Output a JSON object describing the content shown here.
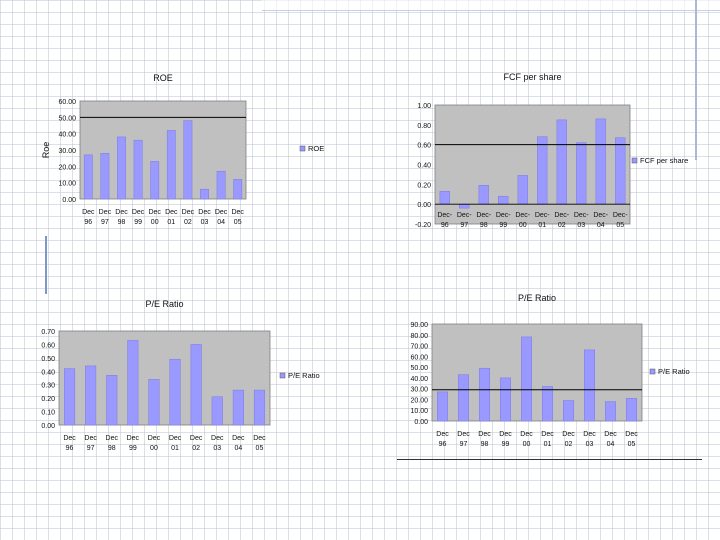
{
  "theme": {
    "plot_bg": "#c0c0c0",
    "bar_fill": "#9999ff",
    "bar_stroke": "#333333",
    "ref_line": "#000000"
  },
  "chart_data": [
    {
      "type": "bar",
      "title": "ROE",
      "ylabel": "Roe",
      "xlabel": "",
      "legend": "ROE",
      "legend_position": "right",
      "grid": false,
      "categories": [
        "Dec 96",
        "Dec 97",
        "Dec 98",
        "Dec 99",
        "Dec 00",
        "Dec 01",
        "Dec 02",
        "Dec 03",
        "Dec 04",
        "Dec 05"
      ],
      "values": [
        27,
        28,
        38,
        36,
        23,
        42,
        48,
        6,
        17,
        12
      ],
      "ylim": [
        0,
        60
      ],
      "yticks": [
        "0.00",
        "10.00",
        "20.00",
        "30.00",
        "40.00",
        "50.00",
        "60.00"
      ],
      "reference_line": 50
    },
    {
      "type": "bar",
      "title": "FCF per share",
      "ylabel": "",
      "xlabel": "",
      "legend": "FCF per share",
      "legend_position": "right",
      "grid": false,
      "categories": [
        "Dec- 96",
        "Dec- 97",
        "Dec- 98",
        "Dec- 99",
        "Dec- 00",
        "Dec- 01",
        "Dec- 02",
        "Dec- 03",
        "Dec- 04",
        "Dec- 05"
      ],
      "values": [
        0.13,
        -0.04,
        0.19,
        0.08,
        0.29,
        0.68,
        0.85,
        0.62,
        0.86,
        0.67
      ],
      "ylim": [
        -0.2,
        1.0
      ],
      "yticks": [
        "-0.20",
        "0.00",
        "0.20",
        "0.40",
        "0.60",
        "0.80",
        "1.00"
      ],
      "reference_line": 0.6
    },
    {
      "type": "bar",
      "title": "P/E Ratio",
      "ylabel": "",
      "xlabel": "",
      "legend": "P/E Ratio",
      "legend_position": "right",
      "grid": false,
      "categories": [
        "Dec 96",
        "Dec 97",
        "Dec 98",
        "Dec 99",
        "Dec 00",
        "Dec 01",
        "Dec 02",
        "Dec 03",
        "Dec 04",
        "Dec 05"
      ],
      "values": [
        0.42,
        0.44,
        0.37,
        0.63,
        0.34,
        0.49,
        0.6,
        0.21,
        0.26,
        0.26
      ],
      "ylim": [
        0,
        0.7
      ],
      "yticks": [
        "0.00",
        "0.10",
        "0.20",
        "0.30",
        "0.40",
        "0.50",
        "0.60",
        "0.70"
      ],
      "reference_line": null
    },
    {
      "type": "bar",
      "title": "P/E Ratio",
      "ylabel": "",
      "xlabel": "",
      "legend": "P/E Ratio",
      "legend_position": "right",
      "grid": false,
      "categories": [
        "Dec 96",
        "Dec 97",
        "Dec 98",
        "Dec 99",
        "Dec 00",
        "Dec 01",
        "Dec 02",
        "Dec 03",
        "Dec 04",
        "Dec 05"
      ],
      "values": [
        27,
        43,
        49,
        40,
        78,
        32,
        19,
        66,
        18,
        21
      ],
      "ylim": [
        0,
        90
      ],
      "yticks": [
        "0.00",
        "10.00",
        "20.00",
        "30.00",
        "40.00",
        "50.00",
        "60.00",
        "70.00",
        "80.00",
        "90.00"
      ],
      "reference_line": 29
    }
  ]
}
